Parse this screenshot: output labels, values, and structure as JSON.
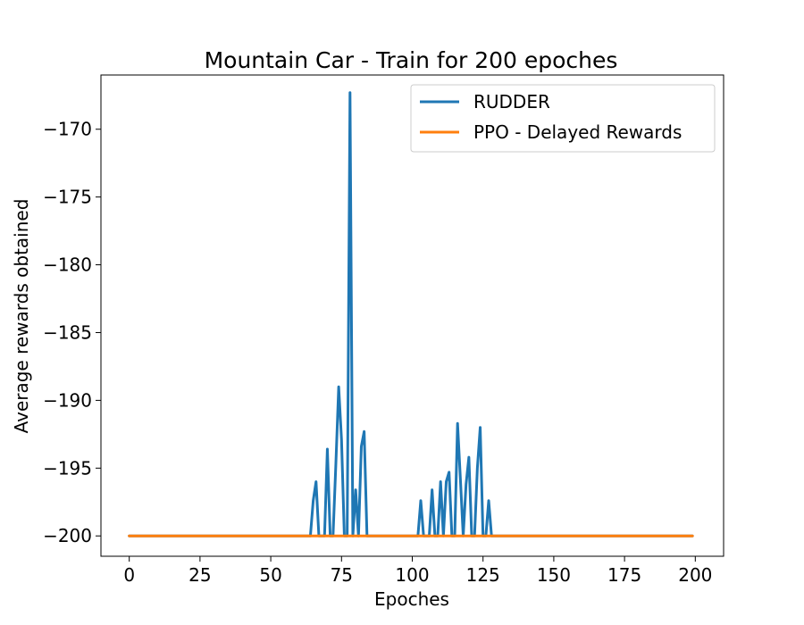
{
  "chart_data": {
    "type": "line",
    "title": "Mountain Car - Train for 200 epoches",
    "xlabel": "Epoches",
    "ylabel": "Average rewards obtained",
    "xlim": [
      -10,
      210
    ],
    "ylim": [
      -201.5,
      -166.0
    ],
    "xticks": [
      0,
      25,
      50,
      75,
      100,
      125,
      150,
      175,
      200
    ],
    "yticks": [
      -200,
      -195,
      -190,
      -185,
      -180,
      -175,
      -170
    ],
    "grid": false,
    "legend_position": "top-right",
    "series": [
      {
        "name": "RUDDER",
        "color": "#1f77b4",
        "x": [
          0,
          63,
          64,
          65,
          66,
          67,
          68,
          69,
          70,
          71,
          72,
          73,
          74,
          75,
          76,
          77,
          78,
          79,
          80,
          81,
          82,
          83,
          84,
          101,
          102,
          103,
          104,
          105,
          106,
          107,
          108,
          109,
          110,
          111,
          112,
          113,
          114,
          115,
          116,
          117,
          118,
          119,
          120,
          121,
          122,
          123,
          124,
          125,
          126,
          127,
          128,
          199
        ],
        "y": [
          -200,
          -200,
          -200,
          -197.4,
          -196.0,
          -200,
          -200,
          -200,
          -193.6,
          -200,
          -200,
          -194.7,
          -189.0,
          -192.9,
          -200,
          -200,
          -167.3,
          -200,
          -196.6,
          -200,
          -193.4,
          -192.3,
          -200,
          -200,
          -200,
          -197.4,
          -200,
          -200,
          -200,
          -196.6,
          -200,
          -200,
          -196.0,
          -200,
          -196.0,
          -195.3,
          -200,
          -200,
          -191.7,
          -195.8,
          -200,
          -196.2,
          -194.2,
          -200,
          -200,
          -195.0,
          -192.0,
          -200,
          -200,
          -197.4,
          -200,
          -200
        ]
      },
      {
        "name": "PPO - Delayed Rewards",
        "color": "#ff7f0e",
        "x": [
          0,
          199
        ],
        "y": [
          -200,
          -200
        ]
      }
    ]
  }
}
